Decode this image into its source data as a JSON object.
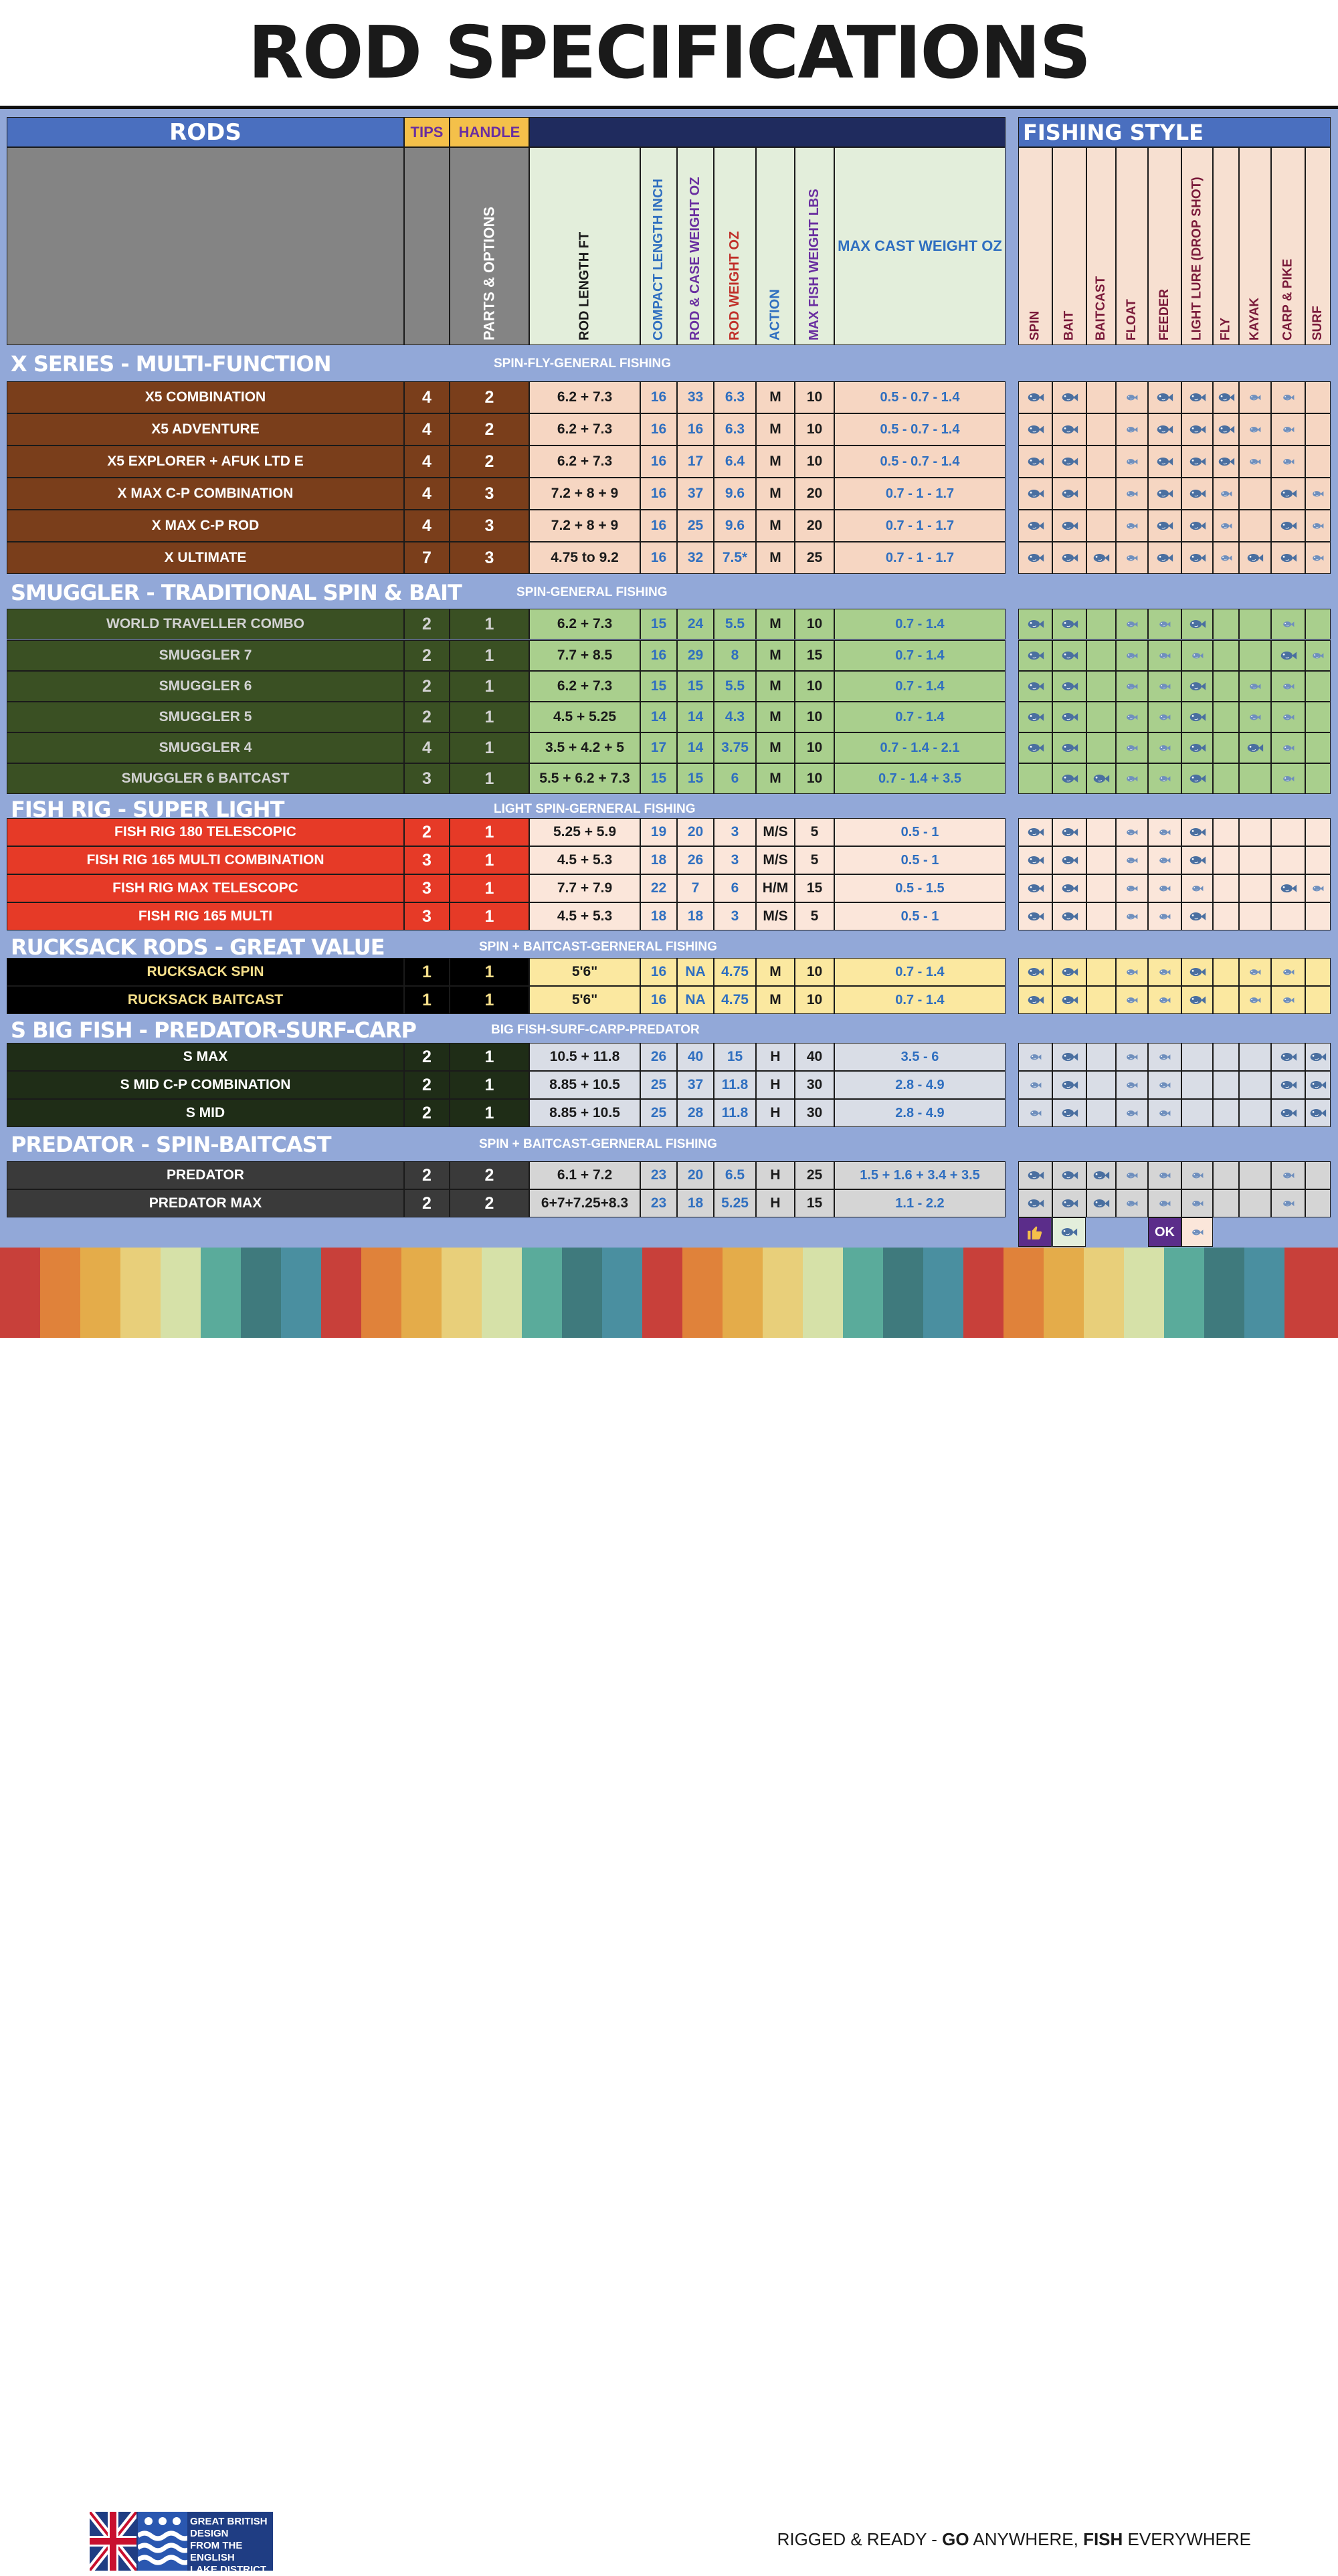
{
  "title": "ROD SPECIFICATIONS",
  "headers": {
    "rods": "RODS",
    "tips": "TIPS",
    "handle": "HANDLE",
    "parts_options": "PARTS & OPTIONS",
    "rod_length": "ROD LENGTH FT",
    "compact_length": "COMPACT LENGTH INCH",
    "rod_case_weight": "ROD & CASE WEIGHT OZ",
    "rod_weight": "ROD WEIGHT OZ",
    "action": "ACTION",
    "max_fish": "MAX FISH WEIGHT LBS",
    "max_cast": "MAX CAST WEIGHT OZ",
    "fishing_style": "FISHING STYLE",
    "styles": [
      "SPIN",
      "BAIT",
      "BAITCAST",
      "FLOAT",
      "FEEDER",
      "LIGHT LURE (DROP SHOT)",
      "FLY",
      "KAYAK",
      "CARP & PIKE",
      "SURF"
    ]
  },
  "sections": [
    {
      "name": "X SERIES - MULTI-FUNCTION",
      "subtitle": "SPIN-FLY-GENERAL FISHING",
      "name_bg": "#7a3e1b",
      "name_fg": "#ffffff",
      "num_fg": "#ffffff",
      "data_bg": "#f6d6c2",
      "rows": [
        {
          "name": "X5 COMBINATION",
          "tips": "4",
          "handle": "2",
          "length": "6.2 + 7.3",
          "compact": "16",
          "case_weight": "33",
          "rod_weight": "6.3",
          "action": "M",
          "max_fish": "10",
          "max_cast": "0.5 - 0.7 - 1.4",
          "styles": [
            2,
            2,
            0,
            1,
            2,
            2,
            2,
            1,
            1,
            0
          ]
        },
        {
          "name": "X5 ADVENTURE",
          "tips": "4",
          "handle": "2",
          "length": "6.2 + 7.3",
          "compact": "16",
          "case_weight": "16",
          "rod_weight": "6.3",
          "action": "M",
          "max_fish": "10",
          "max_cast": "0.5 - 0.7 - 1.4",
          "styles": [
            2,
            2,
            0,
            1,
            2,
            2,
            2,
            1,
            1,
            0
          ]
        },
        {
          "name": "X5 EXPLORER + AFUK LTD E",
          "tips": "4",
          "handle": "2",
          "length": "6.2 + 7.3",
          "compact": "16",
          "case_weight": "17",
          "rod_weight": "6.4",
          "action": "M",
          "max_fish": "10",
          "max_cast": "0.5 - 0.7 - 1.4",
          "styles": [
            2,
            2,
            0,
            1,
            2,
            2,
            2,
            1,
            1,
            0
          ]
        },
        {
          "name": "X MAX C-P COMBINATION",
          "tips": "4",
          "handle": "3",
          "length": "7.2 + 8 + 9",
          "compact": "16",
          "case_weight": "37",
          "rod_weight": "9.6",
          "action": "M",
          "max_fish": "20",
          "max_cast": "0.7 - 1 - 1.7",
          "styles": [
            2,
            2,
            0,
            1,
            2,
            2,
            1,
            0,
            2,
            1
          ]
        },
        {
          "name": "X MAX C-P ROD",
          "tips": "4",
          "handle": "3",
          "length": "7.2 + 8 + 9",
          "compact": "16",
          "case_weight": "25",
          "rod_weight": "9.6",
          "action": "M",
          "max_fish": "20",
          "max_cast": "0.7 - 1 - 1.7",
          "styles": [
            2,
            2,
            0,
            1,
            2,
            2,
            1,
            0,
            2,
            1
          ]
        },
        {
          "name": "X ULTIMATE",
          "tips": "7",
          "handle": "3",
          "length": "4.75 to 9.2",
          "compact": "16",
          "case_weight": "32",
          "rod_weight": "7.5*",
          "action": "M",
          "max_fish": "25",
          "max_cast": "0.7 - 1 - 1.7",
          "styles": [
            2,
            2,
            2,
            1,
            2,
            2,
            1,
            2,
            2,
            1
          ]
        }
      ]
    },
    {
      "name": "SMUGGLER -  TRADITIONAL SPIN & BAIT",
      "subtitle": "SPIN-GENERAL FISHING",
      "name_bg": "#3a5023",
      "name_fg": "#d2d2d2",
      "num_fg": "#d2d2d2",
      "data_bg": "#a9cf8d",
      "rows": [
        {
          "name": "WORLD TRAVELLER COMBO",
          "tips": "2",
          "handle": "1",
          "length": "6.2 + 7.3",
          "compact": "15",
          "case_weight": "24",
          "rod_weight": "5.5",
          "action": "M",
          "max_fish": "10",
          "max_cast": "0.7 - 1.4",
          "styles": [
            2,
            2,
            0,
            1,
            1,
            2,
            0,
            0,
            1,
            0
          ]
        },
        {
          "name": "SMUGGLER 7",
          "tips": "2",
          "handle": "1",
          "length": "7.7 + 8.5",
          "compact": "16",
          "case_weight": "29",
          "rod_weight": "8",
          "action": "M",
          "max_fish": "15",
          "max_cast": "0.7 - 1.4",
          "styles": [
            2,
            2,
            0,
            1,
            1,
            1,
            0,
            0,
            2,
            1
          ]
        },
        {
          "name": "SMUGGLER 6",
          "tips": "2",
          "handle": "1",
          "length": "6.2 + 7.3",
          "compact": "15",
          "case_weight": "15",
          "rod_weight": "5.5",
          "action": "M",
          "max_fish": "10",
          "max_cast": "0.7 - 1.4",
          "styles": [
            2,
            2,
            0,
            1,
            1,
            2,
            0,
            1,
            1,
            0
          ]
        },
        {
          "name": "SMUGGLER 5",
          "tips": "2",
          "handle": "1",
          "length": "4.5 + 5.25",
          "compact": "14",
          "case_weight": "14",
          "rod_weight": "4.3",
          "action": "M",
          "max_fish": "10",
          "max_cast": "0.7 - 1.4",
          "styles": [
            2,
            2,
            0,
            1,
            1,
            2,
            0,
            1,
            1,
            0
          ]
        },
        {
          "name": "SMUGGLER 4",
          "tips": "4",
          "handle": "1",
          "length": "3.5 + 4.2 + 5",
          "compact": "17",
          "case_weight": "14",
          "rod_weight": "3.75",
          "action": "M",
          "max_fish": "10",
          "max_cast": "0.7 - 1.4 - 2.1",
          "styles": [
            2,
            2,
            0,
            1,
            1,
            2,
            0,
            2,
            1,
            0
          ]
        },
        {
          "name": "SMUGGLER 6 BAITCAST",
          "tips": "3",
          "handle": "1",
          "length": "5.5 + 6.2 + 7.3",
          "compact": "15",
          "case_weight": "15",
          "rod_weight": "6",
          "action": "M",
          "max_fish": "10",
          "max_cast": "0.7 - 1.4 + 3.5",
          "styles": [
            0,
            2,
            2,
            1,
            1,
            2,
            0,
            0,
            1,
            0
          ]
        }
      ]
    },
    {
      "name": "FISH RIG - SUPER LIGHT",
      "subtitle": "LIGHT SPIN-GERNERAL FISHING",
      "name_bg": "#e63a27",
      "name_fg": "#ffffff",
      "num_fg": "#ffffff",
      "data_bg": "#fbe6da",
      "rows": [
        {
          "name": "FISH RIG 180 TELESCOPIC",
          "tips": "2",
          "handle": "1",
          "length": "5.25 + 5.9",
          "compact": "19",
          "case_weight": "20",
          "rod_weight": "3",
          "action": "M/S",
          "max_fish": "5",
          "max_cast": "0.5 - 1",
          "styles": [
            2,
            2,
            0,
            1,
            1,
            2,
            0,
            0,
            0,
            0
          ]
        },
        {
          "name": "FISH RIG 165 MULTI COMBINATION",
          "tips": "3",
          "handle": "1",
          "length": "4.5 + 5.3",
          "compact": "18",
          "case_weight": "26",
          "rod_weight": "3",
          "action": "M/S",
          "max_fish": "5",
          "max_cast": "0.5 - 1",
          "styles": [
            2,
            2,
            0,
            1,
            1,
            2,
            0,
            0,
            0,
            0
          ]
        },
        {
          "name": "FISH RIG MAX TELESCOPC",
          "tips": "3",
          "handle": "1",
          "length": "7.7 + 7.9",
          "compact": "22",
          "case_weight": "7",
          "rod_weight": "6",
          "action": "H/M",
          "max_fish": "15",
          "max_cast": "0.5 - 1.5",
          "styles": [
            2,
            2,
            0,
            1,
            1,
            1,
            0,
            0,
            2,
            1
          ]
        },
        {
          "name": "FISH RIG 165 MULTI",
          "tips": "3",
          "handle": "1",
          "length": "4.5 + 5.3",
          "compact": "18",
          "case_weight": "18",
          "rod_weight": "3",
          "action": "M/S",
          "max_fish": "5",
          "max_cast": "0.5 - 1",
          "styles": [
            2,
            2,
            0,
            1,
            1,
            2,
            0,
            0,
            0,
            0
          ]
        }
      ]
    },
    {
      "name": "RUCKSACK RODS  - GREAT VALUE",
      "subtitle": "SPIN + BAITCAST-GERNERAL FISHING",
      "name_bg": "#000000",
      "name_fg": "#f6df8a",
      "num_fg": "#f6df8a",
      "data_bg": "#fbe8a0",
      "rows": [
        {
          "name": "RUCKSACK SPIN",
          "tips": "1",
          "handle": "1",
          "length": "5'6\"",
          "compact": "16",
          "case_weight": "NA",
          "rod_weight": "4.75",
          "action": "M",
          "max_fish": "10",
          "max_cast": "0.7 - 1.4",
          "styles": [
            2,
            2,
            0,
            1,
            1,
            2,
            0,
            1,
            1,
            0
          ]
        },
        {
          "name": "RUCKSACK BAITCAST",
          "tips": "1",
          "handle": "1",
          "length": "5'6\"",
          "compact": "16",
          "case_weight": "NA",
          "rod_weight": "4.75",
          "action": "M",
          "max_fish": "10",
          "max_cast": "0.7 - 1.4",
          "styles": [
            2,
            2,
            0,
            1,
            1,
            2,
            0,
            1,
            1,
            0
          ]
        }
      ]
    },
    {
      "name": "S BIG FISH - PREDATOR-SURF-CARP",
      "subtitle": "BIG FISH-SURF-CARP-PREDATOR",
      "name_bg": "#1f2d17",
      "name_fg": "#ffffff",
      "num_fg": "#ffffff",
      "data_bg": "#d9dde6",
      "rows": [
        {
          "name": "S MAX",
          "tips": "2",
          "handle": "1",
          "length": "10.5 + 11.8",
          "compact": "26",
          "case_weight": "40",
          "rod_weight": "15",
          "action": "H",
          "max_fish": "40",
          "max_cast": "3.5 - 6",
          "styles": [
            1,
            2,
            0,
            1,
            1,
            0,
            0,
            0,
            2,
            2
          ]
        },
        {
          "name": "S MID C-P COMBINATION",
          "tips": "2",
          "handle": "1",
          "length": "8.85 + 10.5",
          "compact": "25",
          "case_weight": "37",
          "rod_weight": "11.8",
          "action": "H",
          "max_fish": "30",
          "max_cast": "2.8 - 4.9",
          "styles": [
            1,
            2,
            0,
            1,
            1,
            0,
            0,
            0,
            2,
            2
          ]
        },
        {
          "name": "S MID",
          "tips": "2",
          "handle": "1",
          "length": "8.85 + 10.5",
          "compact": "25",
          "case_weight": "28",
          "rod_weight": "11.8",
          "action": "H",
          "max_fish": "30",
          "max_cast": "2.8 - 4.9",
          "styles": [
            1,
            2,
            0,
            1,
            1,
            0,
            0,
            0,
            2,
            2
          ]
        }
      ]
    },
    {
      "name": "PREDATOR - SPIN-BAITCAST",
      "subtitle": "SPIN + BAITCAST-GERNERAL FISHING",
      "name_bg": "#3a3a3a",
      "name_fg": "#ffffff",
      "num_fg": "#ffffff",
      "data_bg": "#d5d5d5",
      "rows": [
        {
          "name": "PREDATOR",
          "tips": "2",
          "handle": "2",
          "length": "6.1 + 7.2",
          "compact": "23",
          "case_weight": "20",
          "rod_weight": "6.5",
          "action": "H",
          "max_fish": "25",
          "max_cast": "1.5 + 1.6 + 3.4 + 3.5",
          "styles": [
            2,
            2,
            2,
            1,
            1,
            1,
            0,
            0,
            1,
            0
          ]
        },
        {
          "name": "PREDATOR MAX",
          "tips": "2",
          "handle": "2",
          "length": "6+7+7.25+8.3",
          "compact": "23",
          "case_weight": "18",
          "rod_weight": "5.25",
          "action": "H",
          "max_fish": "15",
          "max_cast": "1.1 - 2.2",
          "styles": [
            2,
            2,
            2,
            1,
            1,
            1,
            0,
            0,
            1,
            0
          ]
        }
      ]
    }
  ],
  "legend": {
    "ok": "OK",
    "thumbs_up_icon": "thumbs-up-icon",
    "fish_icon": "fish-icon"
  },
  "footer": {
    "logo_text": "GREAT BRITISH\nDESIGN\nFROM THE\nENGLISH\nLAKE DISTRICT",
    "tagline_1": "RIGGED & READY - ",
    "tagline_2": "GO",
    "tagline_3": " ANYWHERE, ",
    "tagline_4": "FISH",
    "tagline_5": " EVERYWHERE"
  },
  "colors": {
    "panel": "#92a8d8",
    "rods_header": "#4a6fbf",
    "gold_header": "#f4c04a",
    "navy_header": "#1f2b5e",
    "spec_header_bg": "#e3eedb",
    "style_header_bg": "#f7e0d1",
    "grey_header": "#848484",
    "blue_text": "#2f6fc0",
    "purple_text": "#6a2fa0",
    "red_text": "#c0302a"
  }
}
